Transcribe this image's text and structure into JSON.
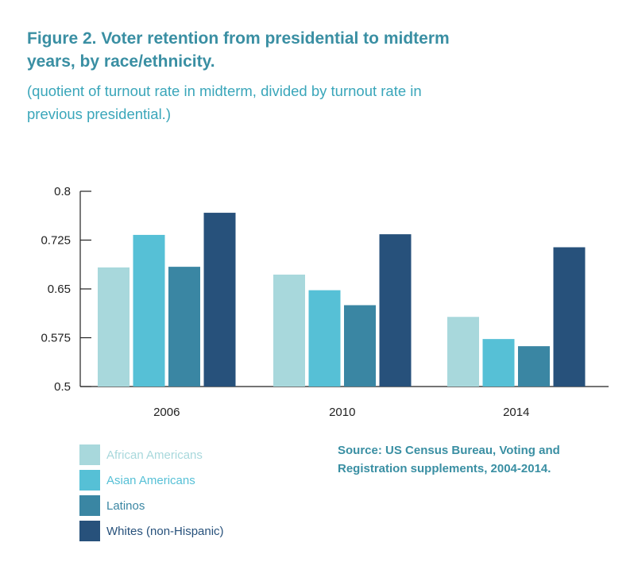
{
  "title": "Figure 2. Voter retention from presidential to midterm years, by race/ethnicity.",
  "subtitle": "(quotient of turnout rate in midterm, divided by turnout rate in previous presidential.)",
  "source": "Source: US Census Bureau, Voting and Registration supplements, 2004-2014.",
  "chart_data": {
    "type": "bar",
    "categories": [
      "2006",
      "2010",
      "2014"
    ],
    "ylim": [
      0.5,
      0.8
    ],
    "yticks": [
      "0.8",
      "0.725",
      "0.65",
      "0.575",
      "0.5"
    ],
    "series": [
      {
        "name": "African Americans",
        "color": "#a8d8dc",
        "values": [
          0.683,
          0.672,
          0.607
        ]
      },
      {
        "name": "Asian Americans",
        "color": "#56c0d6",
        "values": [
          0.733,
          0.648,
          0.573
        ]
      },
      {
        "name": "Latinos",
        "color": "#3a86a3",
        "values": [
          0.684,
          0.625,
          0.562
        ]
      },
      {
        "name": "Whites (non-Hispanic)",
        "color": "#27517b",
        "values": [
          0.767,
          0.734,
          0.714
        ]
      }
    ],
    "legend_position": "bottom-left",
    "grid": false
  }
}
